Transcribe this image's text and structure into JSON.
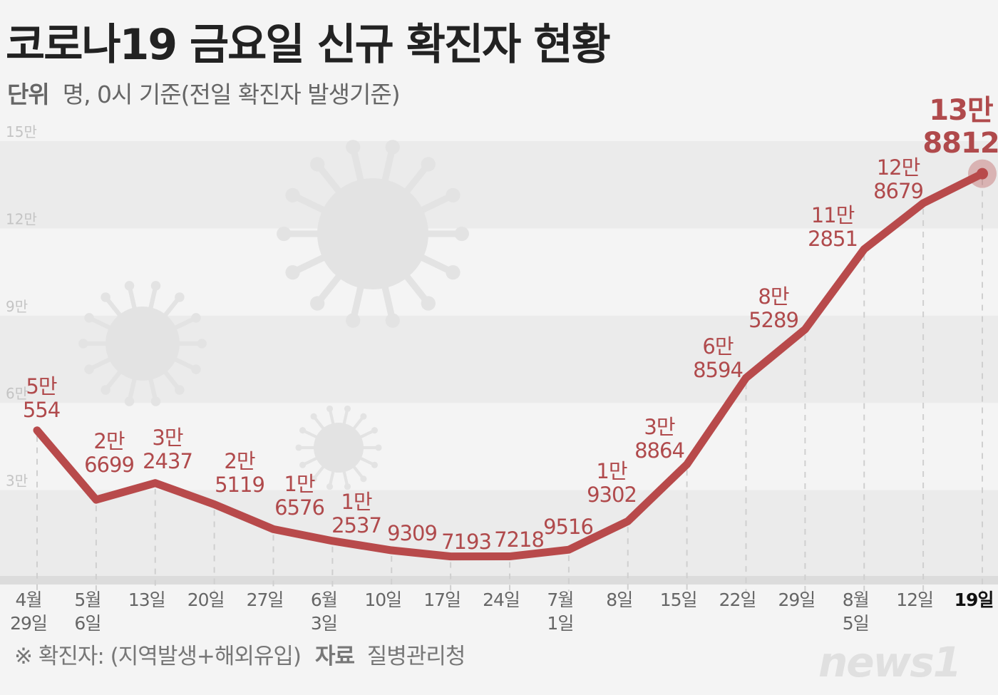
{
  "title": "코로나19 금요일 신규 확진자 현황",
  "subtitle": {
    "label": "단위",
    "text": "명, 0시 기준(전일 확진자 발생기준)"
  },
  "footnote": {
    "note": "※ 확진자: (지역발생+해외유입)",
    "source_label": "자료",
    "source": "질병관리청"
  },
  "logo": "news1",
  "colors": {
    "line": "#b84a4b",
    "label": "#b04a4c",
    "band": "#ebebeb",
    "background": "#f4f4f4",
    "virus": "#e3e3e3"
  },
  "chart_data": {
    "type": "line",
    "title": "코로나19 금요일 신규 확진자 현황",
    "ylabel": "",
    "ylim": [
      0,
      150000
    ],
    "yticks": [
      {
        "value": 30000,
        "label": "3만"
      },
      {
        "value": 60000,
        "label": "6만"
      },
      {
        "value": 90000,
        "label": "9만"
      },
      {
        "value": 120000,
        "label": "12만"
      },
      {
        "value": 150000,
        "label": "15만"
      }
    ],
    "grid": "alternating bands",
    "x": [
      [
        "4월",
        "29일"
      ],
      [
        "5월",
        "6일"
      ],
      [
        "13일"
      ],
      [
        "20일"
      ],
      [
        "27일"
      ],
      [
        "6월",
        "3일"
      ],
      [
        "10일"
      ],
      [
        "17일"
      ],
      [
        "24일"
      ],
      [
        "7월",
        "1일"
      ],
      [
        "8일"
      ],
      [
        "15일"
      ],
      [
        "22일"
      ],
      [
        "29일"
      ],
      [
        "8월",
        "5일"
      ],
      [
        "12일"
      ],
      [
        "19일"
      ]
    ],
    "values": [
      50554,
      26699,
      32437,
      25119,
      16576,
      12537,
      9309,
      7193,
      7218,
      9516,
      19302,
      38864,
      68594,
      85289,
      112851,
      128679,
      138812
    ],
    "labels": [
      [
        "5만",
        "554"
      ],
      [
        "2만",
        "6699"
      ],
      [
        "3만",
        "2437"
      ],
      [
        "2만",
        "5119"
      ],
      [
        "1만",
        "6576"
      ],
      [
        "1만",
        "2537"
      ],
      [
        "9309"
      ],
      [
        "7193"
      ],
      [
        "7218"
      ],
      [
        "9516"
      ],
      [
        "1만",
        "9302"
      ],
      [
        "3만",
        "8864"
      ],
      [
        "6만",
        "8594"
      ],
      [
        "8만",
        "5289"
      ],
      [
        "11만",
        "2851"
      ],
      [
        "12만",
        "8679"
      ],
      [
        "13만",
        "8812"
      ]
    ],
    "highlight_last": true
  }
}
